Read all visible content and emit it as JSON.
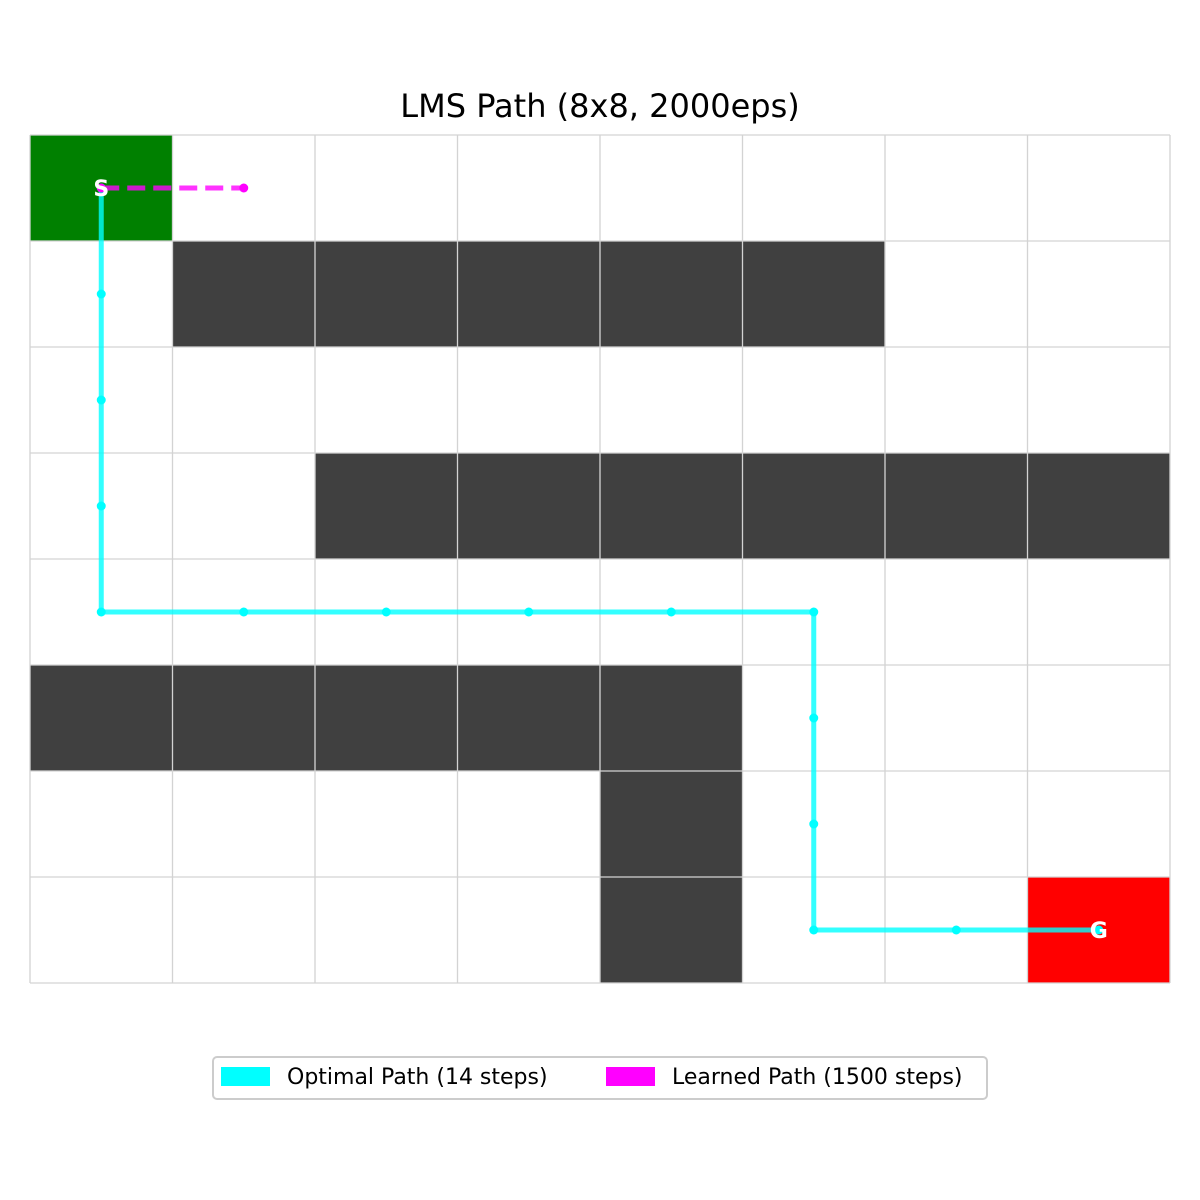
{
  "title": "LMS Path (8x8, 2000eps)",
  "grid": {
    "rows": 8,
    "cols": 8,
    "walls": [
      [
        1,
        1
      ],
      [
        1,
        2
      ],
      [
        1,
        3
      ],
      [
        1,
        4
      ],
      [
        1,
        5
      ],
      [
        3,
        2
      ],
      [
        3,
        3
      ],
      [
        3,
        4
      ],
      [
        3,
        5
      ],
      [
        3,
        6
      ],
      [
        3,
        7
      ],
      [
        5,
        0
      ],
      [
        5,
        1
      ],
      [
        5,
        2
      ],
      [
        5,
        3
      ],
      [
        5,
        4
      ],
      [
        6,
        4
      ],
      [
        7,
        4
      ]
    ],
    "start": [
      0,
      0
    ],
    "goal": [
      7,
      7
    ],
    "start_label": "S",
    "goal_label": "G"
  },
  "colors": {
    "wall": "#404040",
    "empty": "#ffffff",
    "gridline": "#d3d3d3",
    "start": "#008000",
    "goal": "#ff0000",
    "optimal": "#00ffff",
    "learned": "#ff00ff"
  },
  "paths": {
    "optimal": {
      "label": "Optimal Path (14 steps)",
      "cells": [
        [
          0,
          0
        ],
        [
          1,
          0
        ],
        [
          2,
          0
        ],
        [
          3,
          0
        ],
        [
          4,
          0
        ],
        [
          4,
          1
        ],
        [
          4,
          2
        ],
        [
          4,
          3
        ],
        [
          4,
          4
        ],
        [
          4,
          5
        ],
        [
          5,
          5
        ],
        [
          6,
          5
        ],
        [
          7,
          5
        ],
        [
          7,
          6
        ],
        [
          7,
          7
        ]
      ]
    },
    "learned": {
      "label": "Learned Path (1500 steps)",
      "cells": [
        [
          0,
          0
        ],
        [
          0,
          1
        ]
      ]
    }
  }
}
